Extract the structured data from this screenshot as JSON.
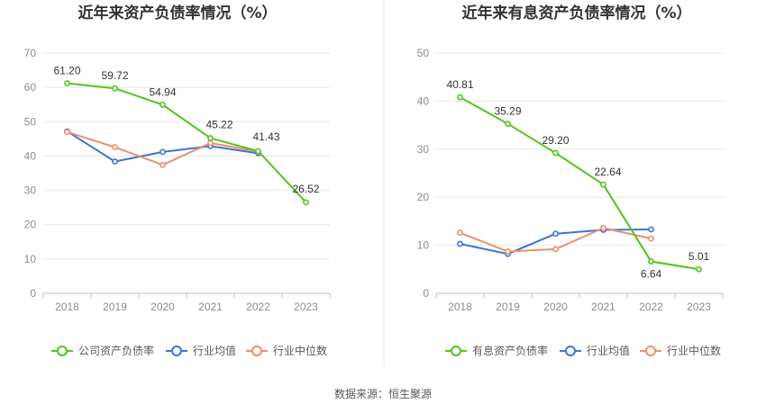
{
  "source": "数据来源：恒生聚源",
  "colors": {
    "main": "#52c41a",
    "avg": "#3a75d8",
    "median": "#f08c6c",
    "grid": "#e6e6e6",
    "axis": "#bfbfbf",
    "divider": "#e8e8e8"
  },
  "chart_data": [
    {
      "type": "line",
      "title": "近年来资产负债率情况（%）",
      "categories": [
        "2018",
        "2019",
        "2020",
        "2021",
        "2022",
        "2023"
      ],
      "ylim": [
        0,
        70
      ],
      "yticks": [
        0,
        10,
        20,
        30,
        40,
        50,
        60,
        70
      ],
      "grid": true,
      "legend_position": "bottom",
      "series": [
        {
          "name": "公司资产负债率",
          "role": "main",
          "values": [
            61.2,
            59.72,
            54.94,
            45.22,
            41.43,
            26.52
          ],
          "labels": [
            "61.20",
            "59.72",
            "54.94",
            "45.22",
            "41.43",
            "26.52"
          ]
        },
        {
          "name": "行业均值",
          "role": "avg",
          "values": [
            47.2,
            38.4,
            41.2,
            42.9,
            40.8,
            null
          ]
        },
        {
          "name": "行业中位数",
          "role": "median",
          "values": [
            47.0,
            42.6,
            37.4,
            43.8,
            41.3,
            null
          ]
        }
      ]
    },
    {
      "type": "line",
      "title": "近年来有息资产负债率情况（%）",
      "categories": [
        "2018",
        "2019",
        "2020",
        "2021",
        "2022",
        "2023"
      ],
      "ylim": [
        0,
        50
      ],
      "yticks": [
        0,
        10,
        20,
        30,
        40,
        50
      ],
      "grid": true,
      "legend_position": "bottom",
      "series": [
        {
          "name": "有息资产负债率",
          "role": "main",
          "values": [
            40.81,
            35.29,
            29.2,
            22.64,
            6.64,
            5.01
          ],
          "labels": [
            "40.81",
            "35.29",
            "29.20",
            "22.64",
            "6.64",
            "5.01"
          ]
        },
        {
          "name": "行业均值",
          "role": "avg",
          "values": [
            10.3,
            8.2,
            12.4,
            13.2,
            13.3,
            null
          ]
        },
        {
          "name": "行业中位数",
          "role": "median",
          "values": [
            12.6,
            8.7,
            9.2,
            13.6,
            11.4,
            null
          ]
        }
      ]
    }
  ]
}
